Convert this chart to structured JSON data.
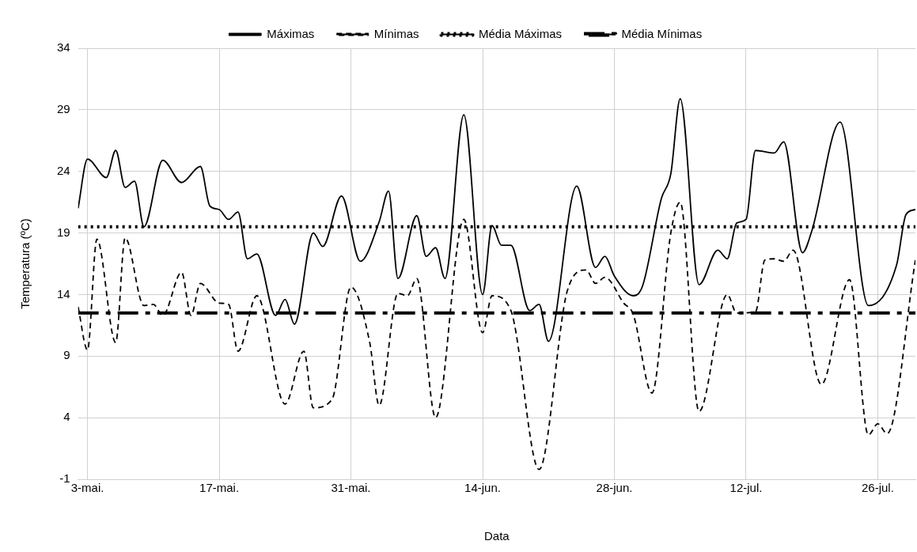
{
  "chart_data": {
    "type": "line",
    "xlabel": "Data",
    "ylabel": "Temperatura (ºC)",
    "xlim": [
      "--05-02",
      "--07-30"
    ],
    "xticks": [
      {
        "value": "--05-03",
        "label": "3-mai."
      },
      {
        "value": "--05-17",
        "label": "17-mai."
      },
      {
        "value": "--05-31",
        "label": "31-mai."
      },
      {
        "value": "--06-14",
        "label": "14-jun."
      },
      {
        "value": "--06-28",
        "label": "28-jun."
      },
      {
        "value": "--07-12",
        "label": "12-jul."
      },
      {
        "value": "--07-26",
        "label": "26-jul."
      }
    ],
    "ylim": [
      -1,
      34
    ],
    "yticks": [
      -1,
      4,
      9,
      14,
      19,
      24,
      29,
      34
    ],
    "grid": true,
    "legend": "top",
    "series": [
      {
        "name": "Máximas",
        "color": "#000000",
        "line_style": "solid",
        "x": [
          "--05-02",
          "--05-03",
          "--05-05",
          "--05-06",
          "--05-07",
          "--05-08",
          "--05-09",
          "--05-11",
          "--05-13",
          "--05-15",
          "--05-16",
          "--05-17",
          "--05-18",
          "--05-19",
          "--05-20",
          "--05-21",
          "--05-23",
          "--05-24",
          "--05-25",
          "--05-27",
          "--05-28",
          "--05-30",
          "--06-01",
          "--06-03",
          "--06-04",
          "--06-05",
          "--06-07",
          "--06-08",
          "--06-09",
          "--06-10",
          "--06-12",
          "--06-14",
          "--06-15",
          "--06-16",
          "--06-17",
          "--06-19",
          "--06-20",
          "--06-21",
          "--06-24",
          "--06-26",
          "--06-27",
          "--06-28",
          "--06-30",
          "--07-01",
          "--07-03",
          "--07-04",
          "--07-05",
          "--07-07",
          "--07-09",
          "--07-10",
          "--07-11",
          "--07-12",
          "--07-13",
          "--07-15",
          "--07-16",
          "--07-18",
          "--07-19",
          "--07-22",
          "--07-25",
          "--07-28",
          "--07-29",
          "--07-30"
        ],
        "values": [
          21,
          25.0,
          23.5,
          25.7,
          22.7,
          23.2,
          19.5,
          24.9,
          23.1,
          24.4,
          21.2,
          20.9,
          20.1,
          20.7,
          16.9,
          17.3,
          12.3,
          13.6,
          11.6,
          19.0,
          17.9,
          22.0,
          16.7,
          19.9,
          22.4,
          15.3,
          20.4,
          17.1,
          17.8,
          15.3,
          28.6,
          14.0,
          19.6,
          18.0,
          18.0,
          12.7,
          13.2,
          10.2,
          22.8,
          16.2,
          17.1,
          15.5,
          13.9,
          14.7,
          21.8,
          23.8,
          29.9,
          14.8,
          17.6,
          16.9,
          19.8,
          20.1,
          25.7,
          25.5,
          26.4,
          17.4,
          19.2,
          28.0,
          13.1,
          16.4,
          20.5,
          20.9
        ]
      },
      {
        "name": "Mínimas",
        "color": "#000000",
        "line_style": "dashed",
        "x": [
          "--05-02",
          "--05-03",
          "--05-04",
          "--05-06",
          "--05-07",
          "--05-09",
          "--05-10",
          "--05-11",
          "--05-13",
          "--05-14",
          "--05-15",
          "--05-17",
          "--05-18",
          "--05-19",
          "--05-21",
          "--05-24",
          "--05-26",
          "--05-27",
          "--05-29",
          "--05-31",
          "--06-02",
          "--06-03",
          "--06-05",
          "--06-06",
          "--06-07",
          "--06-09",
          "--06-12",
          "--06-14",
          "--06-15",
          "--06-17",
          "--06-20",
          "--06-23",
          "--06-25",
          "--06-26",
          "--06-27",
          "--06-29",
          "--06-30",
          "--07-02",
          "--07-04",
          "--07-05",
          "--07-07",
          "--07-10",
          "--07-11",
          "--07-13",
          "--07-14",
          "--07-15",
          "--07-16",
          "--07-17",
          "--07-20",
          "--07-23",
          "--07-25",
          "--07-26",
          "--07-27",
          "--07-30"
        ],
        "values": [
          13,
          9.5,
          18.5,
          10.1,
          18.6,
          13.1,
          13.2,
          12.3,
          15.8,
          12.3,
          14.9,
          13.3,
          13.2,
          9.4,
          13.9,
          5.1,
          9.4,
          4.8,
          5.5,
          14.6,
          10.1,
          5.0,
          14.1,
          13.9,
          15.3,
          4.0,
          20.1,
          10.9,
          13.9,
          12.7,
          -0.2,
          14.3,
          16.0,
          14.9,
          15.4,
          13.3,
          12.4,
          6.0,
          19.0,
          21.5,
          4.5,
          14.0,
          12.5,
          12.6,
          16.8,
          16.9,
          16.7,
          17.6,
          6.7,
          15.2,
          2.6,
          3.5,
          2.7,
          16.8
        ]
      },
      {
        "name": "Média Máximas",
        "color": "#000000",
        "line_style": "dotted",
        "x": [
          "--05-02",
          "--07-30"
        ],
        "values": [
          19.5,
          19.5
        ]
      },
      {
        "name": "Média Mínimas",
        "color": "#000000",
        "line_style": "dashed",
        "x": [
          "--05-02",
          "--07-30"
        ],
        "values": [
          12.5,
          12.5
        ]
      }
    ]
  }
}
